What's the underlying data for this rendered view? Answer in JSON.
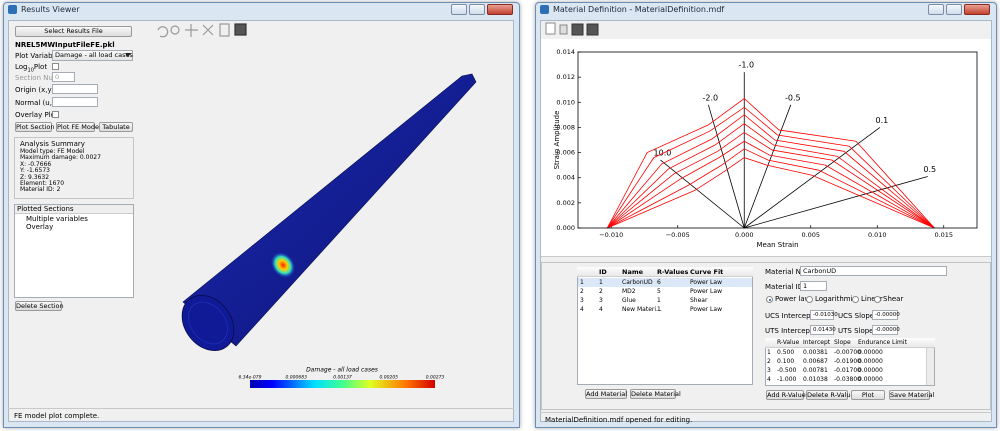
{
  "results_viewer": {
    "title": "Results Viewer",
    "select_button": "Select Results File",
    "file_name": "NREL5MWInputFileFE.pkl",
    "plot_variable_label": "Plot Variable",
    "plot_variable": "Damage - all load cases",
    "log_plot_label": {
      "prefix": "Log",
      "subscript": "10",
      "suffix": "Plot"
    },
    "section_number_label": "Section Number",
    "section_number": "0",
    "origin_label": "Origin (x,y,z)",
    "normal_label": "Normal (u,v,w)",
    "overlay_label": "Overlay Plot",
    "buttons": [
      "Plot Section",
      "Plot FE Model",
      "Tabulate"
    ],
    "analysis_summary": {
      "title": "Analysis Summary",
      "lines": [
        "Model type: FE Model",
        "Maximum damage: 0.0027",
        "X: -0.7666",
        "Y: -1.6573",
        "Z: 9.3632",
        "Element: 1670",
        "Material ID: 2"
      ]
    },
    "plotted_sections": {
      "title": "Plotted Sections",
      "items": [
        "Multiple variables",
        "Overlay"
      ]
    },
    "delete_button": "Delete Section",
    "colorbar": {
      "title": "Damage - all load cases",
      "labels": [
        "6.34e-079",
        "0.000683",
        "0.00137",
        "0.00205",
        "0.00273"
      ]
    },
    "status": "FE model plot complete."
  },
  "material_window": {
    "title": "Material Definition - MaterialDefinition.mdf",
    "materials_table": {
      "headers": [
        "ID",
        "Name",
        "R-Values",
        "Curve Fit"
      ],
      "rows": [
        [
          "1",
          "1",
          "CarbonUD",
          "6",
          "Power Law"
        ],
        [
          "2",
          "2",
          "MD2",
          "5",
          "Power Law"
        ],
        [
          "3",
          "3",
          "Glue",
          "1",
          "Shear"
        ],
        [
          "4",
          "4",
          "New Materi...",
          "1",
          "Power Law"
        ]
      ]
    },
    "material_buttons": [
      "Add Material",
      "Delete Material"
    ],
    "material_name_label": "Material Name",
    "material_name": "CarbonUD",
    "material_id_label": "Material ID",
    "material_id": "1",
    "fit_options": [
      "Power law",
      "Logarithmic",
      "Linear",
      "Shear"
    ],
    "ucs_intercept_label": "UCS Intercept (A)",
    "ucs_intercept": "-0.01030",
    "ucs_slope_label": "UCS Slope (B)",
    "ucs_slope": "-0.00000",
    "uts_intercept_label": "UTS Intercept (A)",
    "uts_intercept": "0.01430",
    "uts_slope_label": "UTS Slope (B)",
    "uts_slope": "-0.00000",
    "r_table": {
      "headers": [
        "R-Value",
        "Intercept",
        "Slope",
        "Endurance Limit"
      ],
      "rows": [
        [
          "1",
          "0.500",
          "0.00381",
          "-0.00700",
          "0.00000"
        ],
        [
          "2",
          "0.100",
          "0.00687",
          "-0.01900",
          "0.00000"
        ],
        [
          "3",
          "-0.500",
          "0.00781",
          "-0.01700",
          "0.00000"
        ],
        [
          "4",
          "-1.000",
          "0.01038",
          "-0.03800",
          "0.00000"
        ]
      ]
    },
    "r_buttons": [
      "Add R-Value",
      "Delete R-Value",
      "Plot",
      "Save Material"
    ],
    "status": "MaterialDefinition.mdf opened for editing."
  },
  "chart_data": {
    "type": "line",
    "xlabel": "Mean Strain",
    "ylabel": "Strain Amplitude",
    "xlim": [
      -0.0125,
      0.0175
    ],
    "ylim": [
      0,
      0.014
    ],
    "xticks": [
      {
        "value": -0.01,
        "label": "−0.010"
      },
      {
        "value": -0.005,
        "label": "−0.005"
      },
      {
        "value": 0,
        "label": "0.000"
      },
      {
        "value": 0.005,
        "label": "0.005"
      },
      {
        "value": 0.01,
        "label": "0.010"
      },
      {
        "value": 0.015,
        "label": "0.015"
      }
    ],
    "yticks": [
      {
        "value": 0,
        "label": "0.000"
      },
      {
        "value": 0.002,
        "label": "0.002"
      },
      {
        "value": 0.004,
        "label": "0.004"
      },
      {
        "value": 0.006,
        "label": "0.006"
      },
      {
        "value": 0.008,
        "label": "0.008"
      },
      {
        "value": 0.01,
        "label": "0.010"
      },
      {
        "value": 0.012,
        "label": "0.012"
      },
      {
        "value": 0.014,
        "label": "0.014"
      }
    ],
    "series": [
      {
        "color": "#ff0000",
        "x": [
          -0.0103,
          -0.0073,
          -0.0027,
          0,
          0.0026,
          0.0084,
          0.0143
        ],
        "values": [
          0,
          0.006,
          0.0082,
          0.0103,
          0.0078,
          0.0069,
          0
        ]
      },
      {
        "color": "#ff0000",
        "x": [
          -0.0103,
          -0.0068,
          -0.0026,
          0,
          0.0025,
          0.0079,
          0.0143
        ],
        "values": [
          0,
          0.0056,
          0.0077,
          0.0096,
          0.0074,
          0.0065,
          0
        ]
      },
      {
        "color": "#ff0000",
        "x": [
          -0.0103,
          -0.0062,
          -0.0024,
          0,
          0.0023,
          0.0075,
          0.0143
        ],
        "values": [
          0,
          0.0051,
          0.0071,
          0.009,
          0.007,
          0.0061,
          0
        ]
      },
      {
        "color": "#ff0000",
        "x": [
          -0.0103,
          -0.0057,
          -0.0022,
          0,
          0.0022,
          0.007,
          0.0143
        ],
        "values": [
          0,
          0.0047,
          0.0066,
          0.0083,
          0.0066,
          0.0057,
          0
        ]
      },
      {
        "color": "#ff0000",
        "x": [
          -0.0103,
          -0.0053,
          -0.002,
          0,
          0.0021,
          0.0066,
          0.0143
        ],
        "values": [
          0,
          0.0043,
          0.0061,
          0.0076,
          0.0062,
          0.0054,
          0
        ]
      },
      {
        "color": "#ff0000",
        "x": [
          -0.0103,
          -0.0048,
          -0.0019,
          0,
          0.0019,
          0.0061,
          0.0143
        ],
        "values": [
          0,
          0.0039,
          0.0056,
          0.0069,
          0.0058,
          0.005,
          0
        ]
      },
      {
        "color": "#ff0000",
        "x": [
          -0.0103,
          -0.0042,
          -0.0017,
          0,
          0.0018,
          0.0056,
          0.0143
        ],
        "values": [
          0,
          0.0034,
          0.005,
          0.0063,
          0.0054,
          0.0046,
          0
        ]
      },
      {
        "color": "#ff0000",
        "x": [
          -0.0103,
          -0.0037,
          -0.0015,
          0,
          0.0017,
          0.0051,
          0.0143
        ],
        "values": [
          0,
          0.003,
          0.0045,
          0.0056,
          0.005,
          0.0042,
          0
        ]
      }
    ],
    "r_lines": [
      {
        "text": "10.0",
        "x": -0.0063,
        "y": 0.0054
      },
      {
        "text": "-2.0",
        "x": -0.0027,
        "y": 0.0098
      },
      {
        "text": "-1.0",
        "x": 0,
        "y": 0.0124
      },
      {
        "text": "-0.5",
        "x": 0.0035,
        "y": 0.0098
      },
      {
        "text": "0.1",
        "x": 0.0102,
        "y": 0.008
      },
      {
        "text": "0.5",
        "x": 0.0138,
        "y": 0.0041
      }
    ],
    "r_line_color": "#000000"
  }
}
